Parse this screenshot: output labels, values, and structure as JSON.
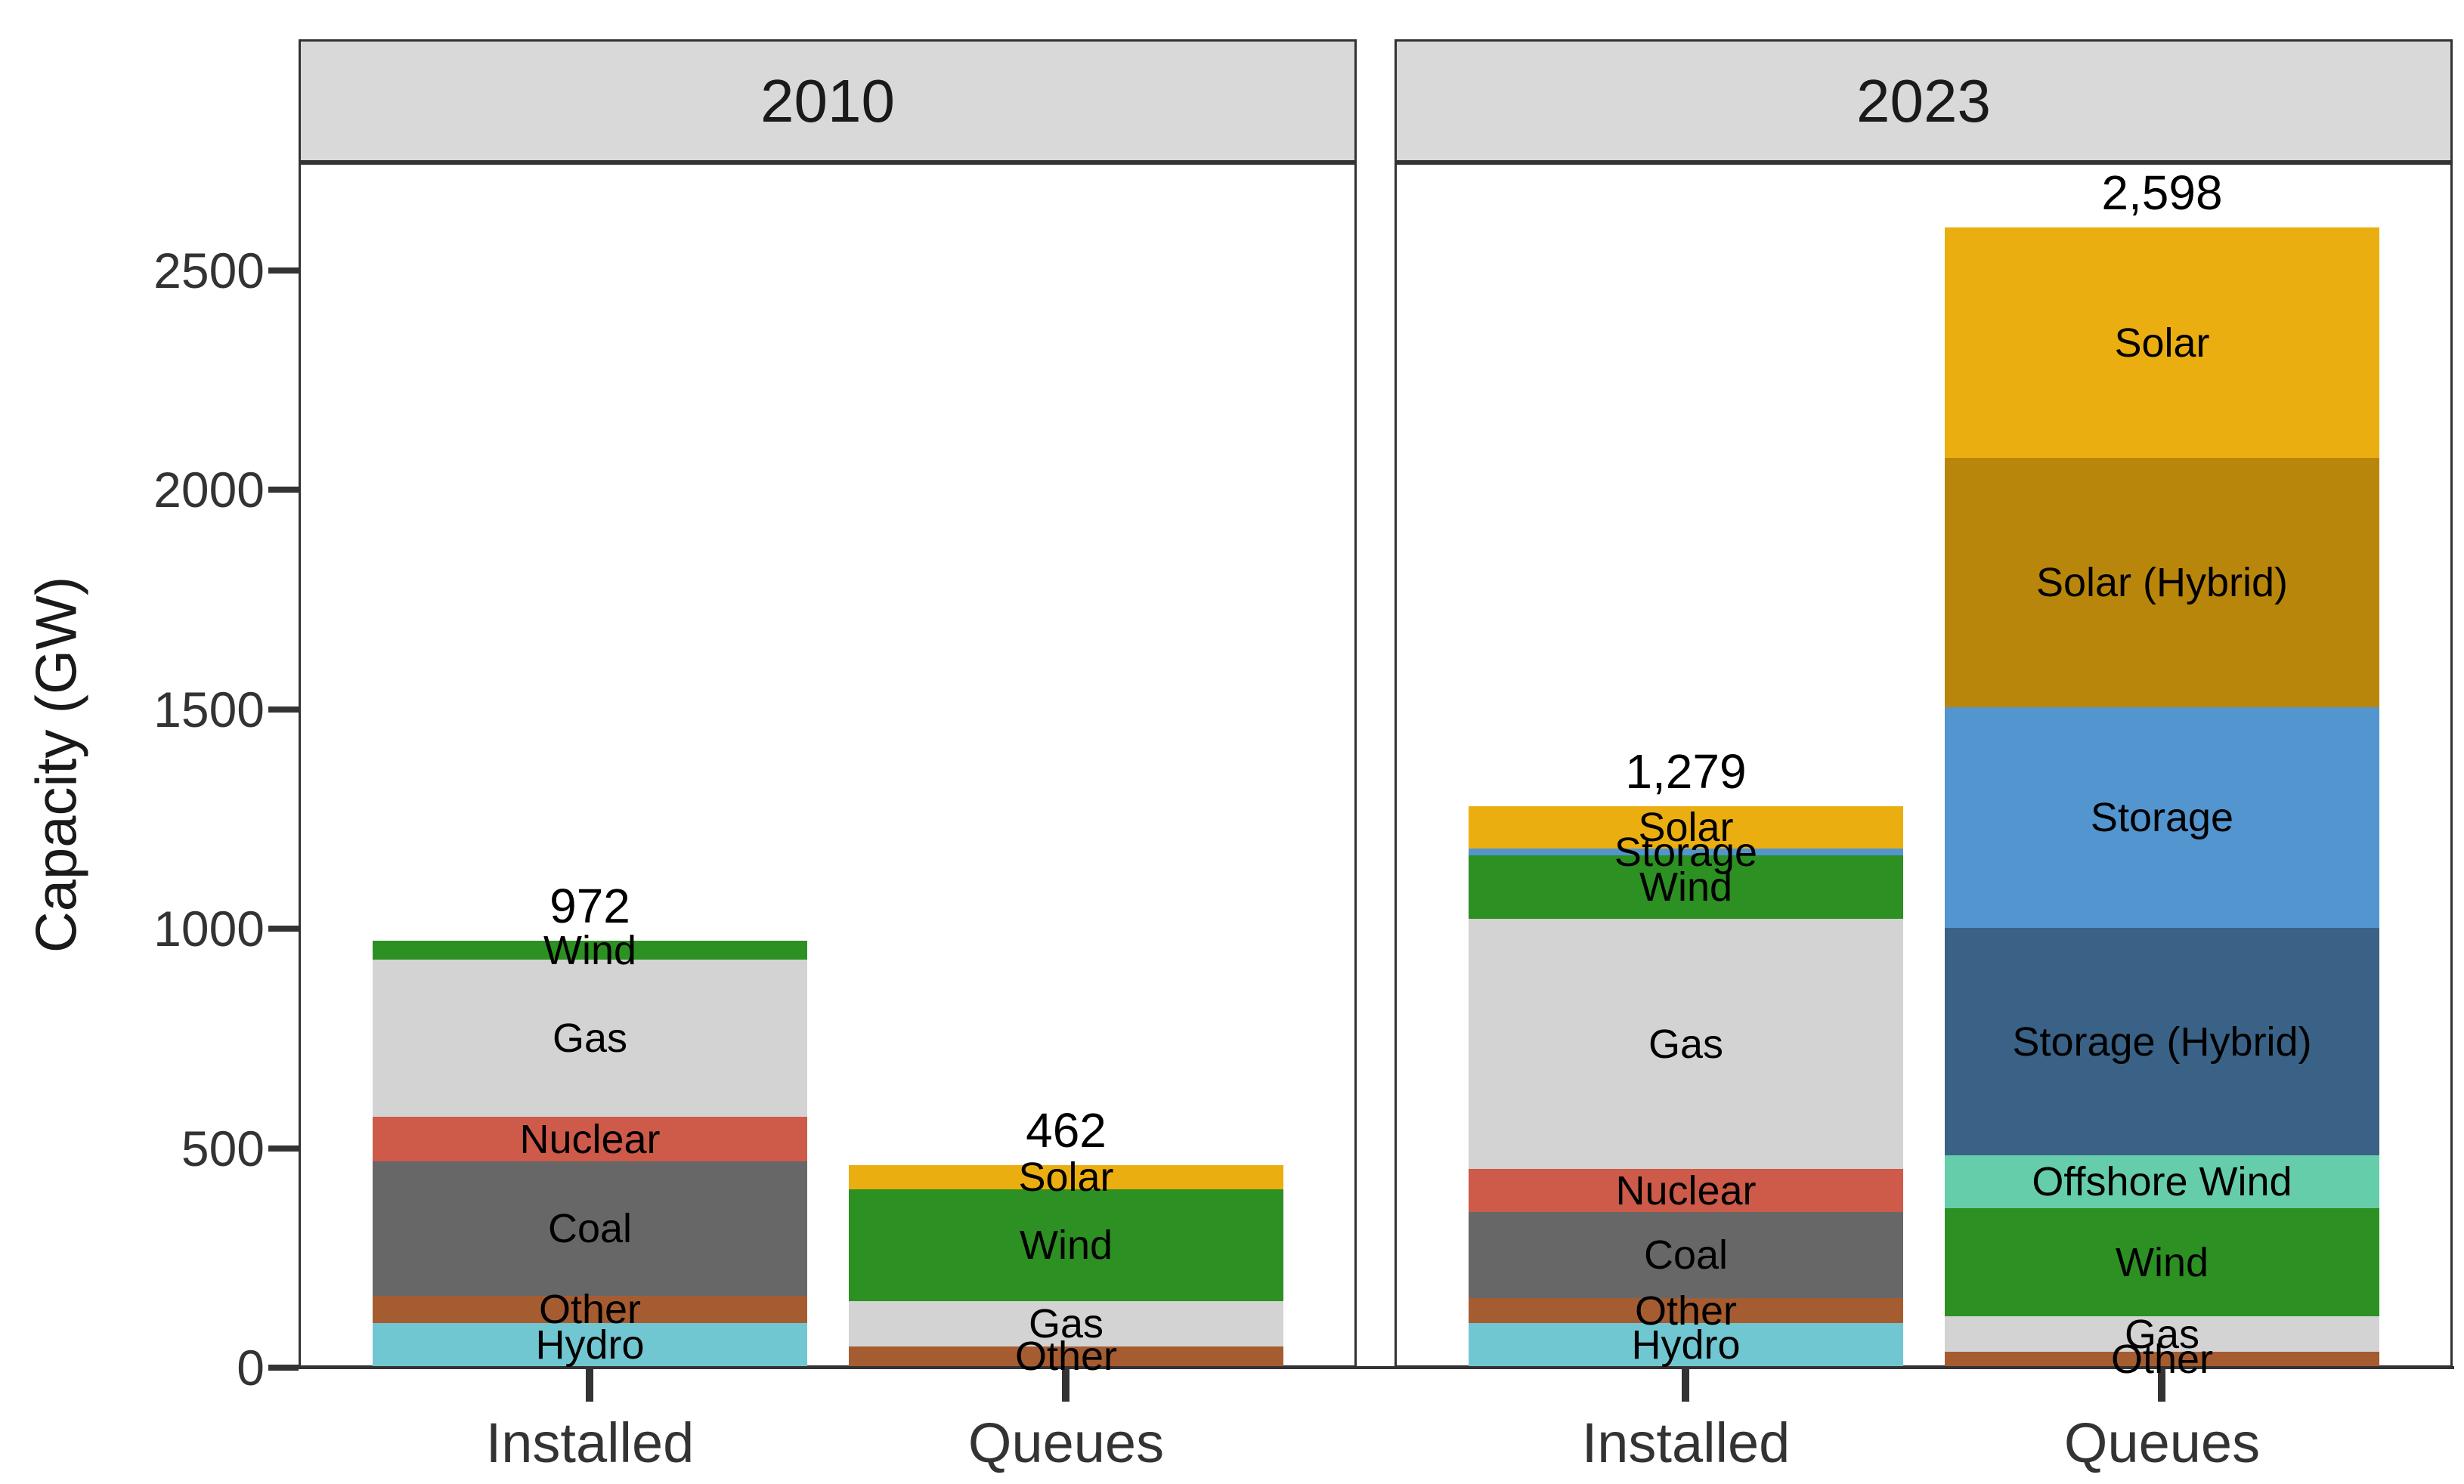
{
  "chart_data": {
    "type": "bar",
    "stacked": true,
    "title": "",
    "ylabel": "Capacity (GW)",
    "ylim": [
      0,
      2745
    ],
    "yticks": [
      "0",
      "500",
      "1000",
      "1500",
      "2000",
      "2500"
    ],
    "ytick_values": [
      0,
      500,
      1000,
      1500,
      2000,
      2500
    ],
    "grid": "off",
    "legend": "none",
    "categories": [
      "Installed",
      "Queues"
    ],
    "colors": {
      "Solar": "#EBAE10",
      "Solar (Hybrid)": "#B8860B",
      "Storage": "#5295CF",
      "Storage (Hybrid)": "#3A6286",
      "Offshore Wind": "#66CDAA",
      "Wind": "#2C9022",
      "Gas": "#D3D3D3",
      "Nuclear": "#CE5A49",
      "Coal": "#676767",
      "Other": "#A65C31",
      "Hydro": "#71C7D1"
    },
    "style_colors": {
      "facet_header_bg": "#D9D9D9",
      "axis_color": "#333333",
      "text_color": "#000000"
    },
    "facets": [
      {
        "label": "2010",
        "bars": [
          {
            "category": "Installed",
            "total": 972,
            "total_label": "972",
            "segments": [
              {
                "name": "Hydro",
                "value": 102
              },
              {
                "name": "Other",
                "value": 61
              },
              {
                "name": "Coal",
                "value": 307
              },
              {
                "name": "Nuclear",
                "value": 101
              },
              {
                "name": "Gas",
                "value": 358
              },
              {
                "name": "Wind",
                "value": 43
              }
            ]
          },
          {
            "category": "Queues",
            "total": 462,
            "total_label": "462",
            "segments": [
              {
                "name": "Other",
                "value": 48
              },
              {
                "name": "Gas",
                "value": 103
              },
              {
                "name": "Wind",
                "value": 255
              },
              {
                "name": "Solar",
                "value": 56
              }
            ]
          }
        ]
      },
      {
        "label": "2023",
        "bars": [
          {
            "category": "Installed",
            "total": 1279,
            "total_label": "1,279",
            "segments": [
              {
                "name": "Hydro",
                "value": 102
              },
              {
                "name": "Other",
                "value": 56
              },
              {
                "name": "Coal",
                "value": 197
              },
              {
                "name": "Nuclear",
                "value": 98
              },
              {
                "name": "Gas",
                "value": 569
              },
              {
                "name": "Wind",
                "value": 145
              },
              {
                "name": "Storage",
                "value": 15
              },
              {
                "name": "Solar",
                "value": 97
              }
            ]
          },
          {
            "category": "Queues",
            "total": 2598,
            "total_label": "2,598",
            "segments": [
              {
                "name": "Other",
                "value": 36
              },
              {
                "name": "Gas",
                "value": 81
              },
              {
                "name": "Wind",
                "value": 246
              },
              {
                "name": "Offshore Wind",
                "value": 120
              },
              {
                "name": "Storage (Hybrid)",
                "value": 519
              },
              {
                "name": "Storage",
                "value": 503
              },
              {
                "name": "Solar (Hybrid)",
                "value": 567
              },
              {
                "name": "Solar",
                "value": 526
              }
            ]
          }
        ]
      }
    ]
  }
}
